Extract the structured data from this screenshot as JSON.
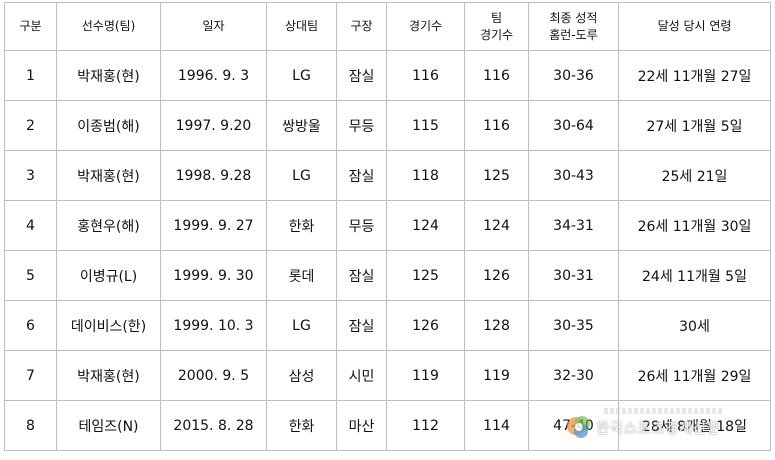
{
  "headers": {
    "no": "구분",
    "player": "선수명(팀)",
    "date": "일자",
    "opponent": "상대팀",
    "stadium": "구장",
    "games": "경기수",
    "team_games_1": "팀",
    "team_games_2": "경기수",
    "final_1": "최종 성적",
    "final_2": "홈런-도루",
    "age": "달성 당시 연령"
  },
  "rows": [
    {
      "no": "1",
      "player": "박재홍(현)",
      "date": "1996. 9. 3",
      "opponent": "LG",
      "stadium": "잠실",
      "games": "116",
      "team_games": "116",
      "final": "30-36",
      "age": "22세 11개월 27일"
    },
    {
      "no": "2",
      "player": "이종범(해)",
      "date": "1997. 9.20",
      "opponent": "쌍방울",
      "stadium": "무등",
      "games": "115",
      "team_games": "116",
      "final": "30-64",
      "age": "27세 1개월 5일"
    },
    {
      "no": "3",
      "player": "박재홍(현)",
      "date": "1998. 9.28",
      "opponent": "LG",
      "stadium": "잠실",
      "games": "118",
      "team_games": "125",
      "final": "30-43",
      "age": "25세 21일"
    },
    {
      "no": "4",
      "player": "홍현우(해)",
      "date": "1999. 9. 27",
      "opponent": "한화",
      "stadium": "무등",
      "games": "124",
      "team_games": "124",
      "final": "34-31",
      "age": "26세 11개월 30일"
    },
    {
      "no": "5",
      "player": "이병규(L)",
      "date": "1999. 9. 30",
      "opponent": "롯데",
      "stadium": "잠실",
      "games": "125",
      "team_games": "126",
      "final": "30-31",
      "age": "24세 11개월 5일"
    },
    {
      "no": "6",
      "player": "데이비스(한)",
      "date": "1999. 10. 3",
      "opponent": "LG",
      "stadium": "잠실",
      "games": "126",
      "team_games": "128",
      "final": "30-35",
      "age": "30세"
    },
    {
      "no": "7",
      "player": "박재홍(현)",
      "date": "2000. 9. 5",
      "opponent": "삼성",
      "stadium": "시민",
      "games": "119",
      "team_games": "119",
      "final": "32-30",
      "age": "26세 11개월 29일"
    },
    {
      "no": "8",
      "player": "테임즈(N)",
      "date": "2015. 8. 28",
      "opponent": "한화",
      "stadium": "마산",
      "games": "112",
      "team_games": "114",
      "final": "47-40",
      "age": "28세 8개월 18일"
    }
  ],
  "watermark": {
    "text": "한국스포츠경제신문",
    "colors": {
      "logo_orange": "#f08a24",
      "logo_green": "#5fb84a",
      "logo_blue": "#2f7fcf"
    }
  }
}
